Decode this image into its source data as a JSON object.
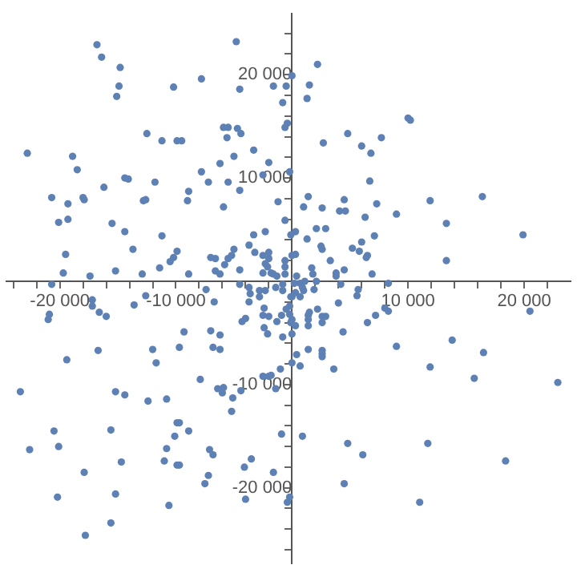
{
  "chart_data": {
    "type": "scatter",
    "color": "#5e81b5",
    "marker": "circle",
    "xlim": [
      -24600,
      24000
    ],
    "ylim": [
      -27300,
      25900
    ],
    "xticks": [
      {
        "value": -24000,
        "label": null
      },
      {
        "value": -22000,
        "label": null
      },
      {
        "value": -20000,
        "label": "-20 000"
      },
      {
        "value": -18000,
        "label": null
      },
      {
        "value": -16000,
        "label": null
      },
      {
        "value": -14000,
        "label": null
      },
      {
        "value": -12000,
        "label": null
      },
      {
        "value": -10000,
        "label": "-10 000"
      },
      {
        "value": -8000,
        "label": null
      },
      {
        "value": -6000,
        "label": null
      },
      {
        "value": -4000,
        "label": null
      },
      {
        "value": -2000,
        "label": null
      },
      {
        "value": 2000,
        "label": null
      },
      {
        "value": 4000,
        "label": null
      },
      {
        "value": 6000,
        "label": null
      },
      {
        "value": 8000,
        "label": null
      },
      {
        "value": 10000,
        "label": "10 000"
      },
      {
        "value": 12000,
        "label": null
      },
      {
        "value": 14000,
        "label": null
      },
      {
        "value": 16000,
        "label": null
      },
      {
        "value": 18000,
        "label": null
      },
      {
        "value": 20000,
        "label": "20 000"
      },
      {
        "value": 22000,
        "label": null
      }
    ],
    "yticks": [
      {
        "value": -26000,
        "label": null
      },
      {
        "value": -24000,
        "label": null
      },
      {
        "value": -22000,
        "label": null
      },
      {
        "value": -20000,
        "label": "-20 000"
      },
      {
        "value": -18000,
        "label": null
      },
      {
        "value": -16000,
        "label": null
      },
      {
        "value": -14000,
        "label": null
      },
      {
        "value": -12000,
        "label": null
      },
      {
        "value": -10000,
        "label": "-10 000"
      },
      {
        "value": -8000,
        "label": null
      },
      {
        "value": -6000,
        "label": null
      },
      {
        "value": -4000,
        "label": null
      },
      {
        "value": -2000,
        "label": null
      },
      {
        "value": 2000,
        "label": null
      },
      {
        "value": 4000,
        "label": null
      },
      {
        "value": 6000,
        "label": null
      },
      {
        "value": 8000,
        "label": null
      },
      {
        "value": 10000,
        "label": "10 000"
      },
      {
        "value": 12000,
        "label": null
      },
      {
        "value": 14000,
        "label": null
      },
      {
        "value": 16000,
        "label": null
      },
      {
        "value": 18000,
        "label": null
      },
      {
        "value": 20000,
        "label": "20 000"
      },
      {
        "value": 22000,
        "label": null
      },
      {
        "value": 24000,
        "label": null
      }
    ],
    "x": [
      -16800,
      -16400,
      -14800,
      -4800,
      -7800,
      -10200,
      -14900,
      -15100,
      -4500,
      -1600,
      -500,
      0,
      -800,
      -400,
      -600,
      -5900,
      -5500,
      -4700,
      -4400,
      -5600,
      -12500,
      -11200,
      -9900,
      -9500,
      -3300,
      -5000,
      -6200,
      -2000,
      -22800,
      -18900,
      -18500,
      -7800,
      -7200,
      -5500,
      -200,
      -2500,
      -4500,
      -11800,
      -14400,
      -14100,
      -16200,
      -8900,
      -20700,
      -19300,
      -18000,
      -17900,
      -12800,
      -12600,
      -9000,
      -1200,
      2200,
      1500,
      1300,
      10000,
      10200,
      4800,
      2700,
      7700,
      6000,
      6800,
      6700,
      1400,
      4500,
      7300,
      11900,
      16400,
      -5900,
      -600,
      -20100,
      -19300,
      -15500,
      -14400,
      -11200,
      -3300,
      -2300,
      -100,
      -3700,
      -13700,
      -9900,
      -19500,
      -10200,
      -10500,
      -11400,
      -7000,
      -6600,
      -5000,
      -5200,
      -5500,
      -5800,
      -3200,
      -2500,
      -2000,
      -2000,
      -2300,
      -2100,
      -600,
      0,
      -600,
      -1800,
      -1600,
      -1300,
      -2500,
      -6600,
      -6200,
      -4500,
      -19700,
      -17400,
      -15200,
      -12900,
      -8900,
      -20700,
      -17200,
      -17200,
      -16600,
      -16000,
      -20900,
      -21000,
      -13600,
      -12600,
      -7400,
      -6700,
      -4500,
      -3700,
      -3600,
      -3700,
      -2800,
      -2800,
      -2300,
      -2400,
      -2500,
      -2000,
      -1400,
      -800,
      -200,
      -500,
      -900,
      -1300,
      -100,
      -100,
      -4300,
      -4000,
      -2400,
      -2100,
      -800,
      -9300,
      -7000,
      -6200,
      -6800,
      -6200,
      -9700,
      -12000,
      -11700,
      -16700,
      -19400,
      -7900,
      -2500,
      -2000,
      -1000,
      0,
      1000,
      2600,
      4100,
      4600,
      6300,
      9000,
      13300,
      19900,
      2100,
      2900,
      300,
      1300,
      7100,
      6000,
      2500,
      2600,
      5200,
      5800,
      6500,
      6400,
      3300,
      300,
      13300,
      -600,
      400,
      1700,
      1800,
      3800,
      3800,
      4500,
      6900,
      200,
      700,
      1100,
      900,
      1000,
      2100,
      1900,
      4200,
      -800,
      8300,
      300,
      0,
      700,
      5700,
      5600,
      4000,
      2200,
      1500,
      1400,
      -200,
      2600,
      2900,
      8000,
      8300,
      7200,
      6500,
      20500,
      0,
      1400,
      1400,
      300,
      2600,
      4400,
      0,
      9000,
      13800,
      16500,
      1400,
      2600,
      2600,
      2600,
      400,
      700,
      3600,
      11900,
      15700,
      -23400,
      -15200,
      -14400,
      -12400,
      -10800,
      -6400,
      -5900,
      -6000,
      -5100,
      -4400,
      -1800,
      -1400,
      -5200,
      -20500,
      -15600,
      -9900,
      -9700,
      -8900,
      -10100,
      -22600,
      -20100,
      -10800,
      -7100,
      -6800,
      -900,
      -3500,
      -4100,
      -14700,
      -11000,
      -9900,
      -9700,
      -17900,
      -1600,
      -7200,
      -7500,
      -20200,
      -15200,
      -4000,
      -200,
      -400,
      -10600,
      -15600,
      -17800,
      22900,
      900,
      4800,
      6100,
      11700,
      18400,
      4500,
      11000
    ],
    "values": [
      22900,
      21700,
      20700,
      23200,
      19600,
      18800,
      18900,
      17900,
      18600,
      18900,
      18900,
      19900,
      17300,
      15300,
      14900,
      14900,
      14900,
      14800,
      14300,
      13900,
      14300,
      13600,
      13600,
      13600,
      12700,
      12100,
      11400,
      11500,
      12400,
      12100,
      10800,
      10600,
      9600,
      9600,
      10600,
      10300,
      8800,
      9600,
      10000,
      9900,
      9100,
      8700,
      8100,
      7500,
      8100,
      7900,
      7800,
      7900,
      7800,
      7700,
      21000,
      19000,
      17700,
      15800,
      15600,
      14300,
      13400,
      13900,
      13100,
      12400,
      9700,
      8200,
      7900,
      7500,
      7800,
      8200,
      7200,
      5900,
      5700,
      6000,
      5600,
      4800,
      4400,
      4500,
      4800,
      4500,
      3500,
      3100,
      2900,
      2600,
      2300,
      1900,
      1300,
      2300,
      2200,
      3100,
      2500,
      2200,
      1600,
      2800,
      2500,
      2800,
      2200,
      1700,
      1400,
      2000,
      2500,
      1400,
      800,
      700,
      500,
      800,
      1000,
      700,
      1100,
      800,
      500,
      1000,
      700,
      700,
      -300,
      -1800,
      -2400,
      -3000,
      -3400,
      -3200,
      -3700,
      -2300,
      -1400,
      -800,
      -2000,
      -300,
      -600,
      -1200,
      -2000,
      -900,
      -1500,
      -900,
      -2600,
      -3300,
      -3400,
      -600,
      -900,
      -2400,
      -2700,
      -3300,
      -3900,
      -1500,
      -4000,
      -3900,
      -3600,
      -4500,
      -5100,
      -5400,
      -4900,
      -4800,
      -5200,
      -6400,
      -6600,
      -6400,
      -6600,
      -7900,
      -6700,
      -7600,
      -9500,
      -9200,
      -9200,
      -8500,
      -7900,
      7200,
      7100,
      6800,
      6800,
      6200,
      6500,
      5600,
      4500,
      5100,
      5100,
      4800,
      4100,
      4400,
      3800,
      3400,
      3100,
      3200,
      2900,
      2500,
      2300,
      2000,
      2600,
      2000,
      700,
      500,
      1300,
      700,
      800,
      500,
      1100,
      700,
      -200,
      -200,
      0,
      -600,
      -900,
      0,
      -800,
      -300,
      -300,
      -200,
      -1100,
      -1500,
      -1500,
      -800,
      -1400,
      -2100,
      -2700,
      -3000,
      -3300,
      -3200,
      -3400,
      -3400,
      -2600,
      -2900,
      -3300,
      -4000,
      -2900,
      -3700,
      -3700,
      -4300,
      -4300,
      -4000,
      -4900,
      -5100,
      -6300,
      -5700,
      -6900,
      -6600,
      -6700,
      -7000,
      -7300,
      -7100,
      -8200,
      -8500,
      -8300,
      -9400,
      -10700,
      -10700,
      -11000,
      -11600,
      -11400,
      -10400,
      -10300,
      -10800,
      -11300,
      -10600,
      -9100,
      -10400,
      -12600,
      -14500,
      -14400,
      -13700,
      -13700,
      -14500,
      -15000,
      -16300,
      -16000,
      -16200,
      -16300,
      -16800,
      -14800,
      -17200,
      -18000,
      -17500,
      -17400,
      -17800,
      -17800,
      -18500,
      -18500,
      -18800,
      -19600,
      -20900,
      -20600,
      -21100,
      -20900,
      -21400,
      -21700,
      -23400,
      -24600,
      -9800,
      -15000,
      -15700,
      -16800,
      -15700,
      -17400,
      -19600,
      -21400
    ]
  }
}
